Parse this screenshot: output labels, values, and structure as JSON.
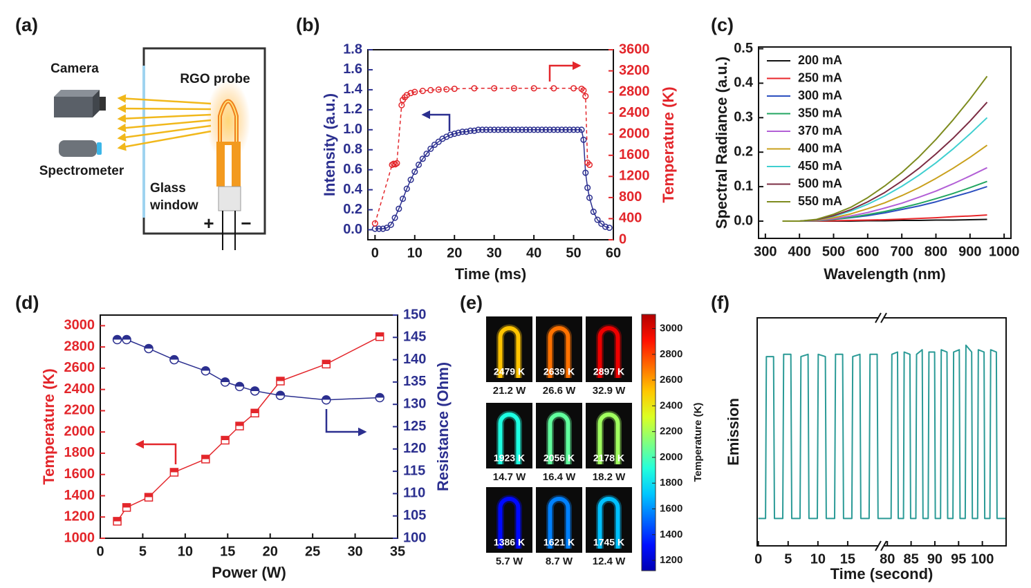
{
  "panel_a": {
    "label": "(a)",
    "camera": "Camera",
    "probe": "RGO probe",
    "spectrometer": "Spectrometer",
    "window": [
      "Glass",
      "window"
    ],
    "plus": "+",
    "minus": "−"
  },
  "panel_e": {
    "label": "(e)",
    "cells": [
      {
        "temperature": {
          "value": 2479,
          "label": "2479 K"
        },
        "power": "21.2 W"
      },
      {
        "temperature": {
          "value": 2639,
          "label": "2639 K"
        },
        "power": "26.6 W"
      },
      {
        "temperature": {
          "value": 2897,
          "label": "2897 K"
        },
        "power": "32.9 W"
      },
      {
        "temperature": {
          "value": 1923,
          "label": "1923 K"
        },
        "power": "14.7 W"
      },
      {
        "temperature": {
          "value": 2056,
          "label": "2056 K"
        },
        "power": "16.4 W"
      },
      {
        "temperature": {
          "value": 2178,
          "label": "2178 K"
        },
        "power": "18.2 W"
      },
      {
        "temperature": {
          "value": 1386,
          "label": "1386 K"
        },
        "power": "5.7 W"
      },
      {
        "temperature": {
          "value": 1621,
          "label": "1621 K"
        },
        "power": "8.7 W"
      },
      {
        "temperature": {
          "value": 1745,
          "label": "1745 K"
        },
        "power": "12.4 W"
      }
    ],
    "colorbar": {
      "label": "Temperature (K)",
      "lim": [
        1120,
        3110
      ],
      "ticks": [
        1200,
        1400,
        1600,
        1800,
        2000,
        2200,
        2400,
        2600,
        2800,
        3000
      ]
    }
  },
  "chart_data": [
    {
      "panel": "(b)",
      "type": "line",
      "xlabel": "Time (ms)",
      "ylabel": "Intensity (a.u.)",
      "y2label": "Temperature (K)",
      "xlim": [
        -1.8,
        60
      ],
      "xticks": [
        0,
        10,
        20,
        30,
        40,
        50,
        60
      ],
      "ylim": [
        -0.1,
        1.8
      ],
      "yticks": [
        {
          "value": 0,
          "label": "0.0"
        },
        0.2,
        0.4,
        0.6,
        0.8,
        {
          "value": 1,
          "label": "1.0"
        },
        1.2,
        1.4,
        1.6,
        1.8
      ],
      "y2lim": [
        0,
        3600
      ],
      "y2ticks": [
        0,
        400,
        800,
        1200,
        1600,
        2000,
        2400,
        2800,
        3200,
        3600
      ],
      "ycolor": "#2b2f8f",
      "y2color": "#e3262b",
      "series": [
        {
          "color": "#2b2f8f",
          "marker": "circle",
          "marker_fill": "open",
          "x": [
            0,
            1,
            2,
            3,
            4,
            5,
            6,
            7,
            8,
            9,
            10,
            11,
            12,
            13,
            14,
            15,
            16,
            17,
            18,
            19,
            20,
            21,
            22,
            23,
            24,
            25,
            26,
            27,
            28,
            29,
            30,
            31,
            32,
            33,
            34,
            35,
            36,
            37,
            38,
            39,
            40,
            41,
            42,
            43,
            44,
            45,
            46,
            47,
            48,
            49,
            50,
            51,
            52,
            52.5,
            53,
            53.5,
            54,
            55,
            56,
            57,
            58,
            59
          ],
          "values": [
            0.01,
            0.01,
            0.01,
            0.02,
            0.05,
            0.12,
            0.21,
            0.31,
            0.41,
            0.5,
            0.58,
            0.65,
            0.71,
            0.76,
            0.81,
            0.85,
            0.88,
            0.91,
            0.93,
            0.95,
            0.96,
            0.97,
            0.98,
            0.98,
            0.99,
            0.99,
            1,
            1,
            1,
            1,
            1,
            1,
            1,
            1,
            1,
            1,
            1,
            1,
            1,
            1,
            1,
            1,
            1,
            1,
            1,
            1,
            1,
            1,
            1,
            1,
            1,
            1,
            1,
            0.9,
            0.57,
            0.42,
            0.32,
            0.18,
            0.1,
            0.06,
            0.03,
            0.02
          ]
        },
        {
          "color": "#e3262b",
          "axis": "y2",
          "marker": "circle",
          "marker_fill": "open",
          "dashed": true,
          "x": [
            0,
            4.3,
            4.7,
            5.1,
            5.5,
            6.7,
            7,
            7.5,
            8,
            9,
            10,
            12,
            14,
            16,
            18,
            20,
            25,
            30,
            35,
            40,
            45,
            50,
            52,
            52.5,
            53,
            53.5,
            54
          ],
          "values": [
            310,
            1420,
            1440,
            1430,
            1450,
            2550,
            2650,
            2700,
            2740,
            2780,
            2800,
            2820,
            2835,
            2845,
            2850,
            2860,
            2870,
            2870,
            2870,
            2870,
            2870,
            2870,
            2860,
            2830,
            2720,
            1460,
            1420
          ]
        }
      ]
    },
    {
      "panel": "(c)",
      "type": "line",
      "xlabel": "Wavelength (nm)",
      "ylabel": "Spectral Radiance (a.u.)",
      "xlim": [
        280,
        1020
      ],
      "xticks": [
        300,
        400,
        500,
        600,
        700,
        800,
        900,
        1000
      ],
      "ylim": [
        -0.05,
        0.505
      ],
      "yticks": [
        {
          "value": 0,
          "label": "0.0"
        },
        0.1,
        0.2,
        0.3,
        0.4,
        0.5
      ],
      "legend": "upper left",
      "x": [
        350,
        400,
        450,
        500,
        550,
        600,
        650,
        700,
        750,
        800,
        850,
        900,
        950
      ],
      "series": [
        {
          "name": "200 mA",
          "color": "#111111",
          "values": [
            0,
            0,
            0,
            0,
            0,
            0.001,
            0.001,
            0.002,
            0.002,
            0.003,
            0.003,
            0.004,
            0.005
          ]
        },
        {
          "name": "250 mA",
          "color": "#e8262a",
          "values": [
            0,
            0,
            0,
            0.001,
            0.002,
            0.003,
            0.004,
            0.006,
            0.008,
            0.01,
            0.013,
            0.015,
            0.018
          ]
        },
        {
          "name": "300 mA",
          "color": "#2b4fbf",
          "values": [
            0,
            0,
            0.001,
            0.005,
            0.01,
            0.016,
            0.024,
            0.034,
            0.044,
            0.056,
            0.07,
            0.084,
            0.1
          ]
        },
        {
          "name": "350 mA",
          "color": "#22a660",
          "values": [
            0,
            0,
            0.001,
            0.005,
            0.011,
            0.019,
            0.028,
            0.039,
            0.051,
            0.065,
            0.08,
            0.097,
            0.115
          ]
        },
        {
          "name": "370 mA",
          "color": "#b25fd6",
          "values": [
            0,
            0,
            0.002,
            0.007,
            0.015,
            0.025,
            0.038,
            0.052,
            0.069,
            0.087,
            0.108,
            0.131,
            0.155
          ]
        },
        {
          "name": "400 mA",
          "color": "#c9a01c",
          "values": [
            0,
            0,
            0.003,
            0.01,
            0.021,
            0.036,
            0.053,
            0.074,
            0.097,
            0.124,
            0.153,
            0.185,
            0.22
          ]
        },
        {
          "name": "450 mA",
          "color": "#3fcfd0",
          "values": [
            0,
            0,
            0.004,
            0.014,
            0.029,
            0.049,
            0.073,
            0.101,
            0.133,
            0.169,
            0.209,
            0.253,
            0.3
          ]
        },
        {
          "name": "500 mA",
          "color": "#7b2c43",
          "values": [
            0,
            0,
            0.004,
            0.016,
            0.033,
            0.056,
            0.083,
            0.116,
            0.153,
            0.195,
            0.24,
            0.29,
            0.345
          ]
        },
        {
          "name": "550 mA",
          "color": "#7d8b1e",
          "values": [
            0,
            0,
            0.005,
            0.02,
            0.04,
            0.068,
            0.102,
            0.141,
            0.186,
            0.237,
            0.293,
            0.354,
            0.42
          ]
        }
      ]
    },
    {
      "panel": "(d)",
      "type": "line",
      "xlabel": "Power (W)",
      "ylabel": "Temperature (K)",
      "y2label": "Resistance (Ohm)",
      "xlim": [
        0,
        35
      ],
      "xticks": [
        0,
        5,
        10,
        15,
        20,
        25,
        30,
        35
      ],
      "ylim": [
        1000,
        3100
      ],
      "yticks": [
        1000,
        1200,
        1400,
        1600,
        1800,
        2000,
        2200,
        2400,
        2600,
        2800,
        3000
      ],
      "y2lim": [
        100,
        150
      ],
      "y2ticks": [
        100,
        105,
        110,
        115,
        120,
        125,
        130,
        135,
        140,
        145,
        150
      ],
      "ycolor": "#e3262b",
      "y2color": "#2b2f8f",
      "x": [
        2,
        3.1,
        5.7,
        8.7,
        12.4,
        14.7,
        16.4,
        18.2,
        21.2,
        26.6,
        32.9
      ],
      "series": [
        {
          "color": "#e3262b",
          "marker": "square",
          "marker_fill": "half",
          "values": [
            1160,
            1290,
            1386,
            1621,
            1745,
            1923,
            2056,
            2178,
            2479,
            2639,
            2897
          ]
        },
        {
          "color": "#2b2f8f",
          "axis": "y2",
          "marker": "circle",
          "marker_fill": "half",
          "values": [
            144.5,
            144.5,
            142.5,
            140,
            137.5,
            135,
            134,
            133,
            132,
            131,
            131.5
          ]
        }
      ]
    },
    {
      "panel": "(f)",
      "type": "line",
      "xlabel": "Time (second)",
      "ylabel": "Emission",
      "xlim": [
        -0.2,
        105
      ],
      "xbreak": [
        20.7,
        78.8
      ],
      "xticks": [
        0,
        5,
        10,
        15,
        80,
        85,
        90,
        95,
        100
      ],
      "ylim": [
        0,
        1
      ],
      "series": [
        {
          "color": "#2a9a96",
          "x": [
            0,
            1.2,
            1.35,
            2.55,
            2.7,
            4.1,
            4.25,
            5.45,
            5.6,
            7.0,
            7.15,
            8.35,
            8.5,
            9.9,
            10.05,
            11.25,
            11.4,
            12.8,
            12.95,
            14.15,
            14.3,
            15.7,
            15.85,
            17.05,
            17.2,
            18.6,
            18.75,
            19.95,
            20.1,
            20.7,
            null,
            78.8,
            80.8,
            80.95,
            82.15,
            82.3,
            83.4,
            83.55,
            84.75,
            84.9,
            86,
            86.15,
            87.35,
            87.5,
            88.6,
            88.75,
            89.95,
            90.1,
            91.2,
            91.35,
            92.55,
            92.7,
            93.8,
            93.95,
            95.15,
            95.3,
            96.4,
            96.55,
            97.75,
            97.9,
            99,
            99.15,
            100.35,
            100.5,
            101.6,
            101.75,
            102.95,
            103.1,
            105
          ],
          "values": [
            0.12,
            0.12,
            0.83,
            0.83,
            0.12,
            0.12,
            0.84,
            0.84,
            0.12,
            0.12,
            0.83,
            0.84,
            0.12,
            0.12,
            0.84,
            0.83,
            0.12,
            0.12,
            0.84,
            0.84,
            0.12,
            0.12,
            0.83,
            0.84,
            0.12,
            0.12,
            0.84,
            0.84,
            0.12,
            0.12,
            null,
            0.12,
            0.12,
            0.84,
            0.85,
            0.12,
            0.12,
            0.85,
            0.84,
            0.12,
            0.12,
            0.84,
            0.86,
            0.12,
            0.12,
            0.85,
            0.85,
            0.12,
            0.12,
            0.86,
            0.85,
            0.12,
            0.12,
            0.85,
            0.86,
            0.12,
            0.12,
            0.88,
            0.85,
            0.12,
            0.12,
            0.86,
            0.85,
            0.12,
            0.12,
            0.86,
            0.85,
            0.12,
            0.12
          ]
        }
      ]
    }
  ]
}
